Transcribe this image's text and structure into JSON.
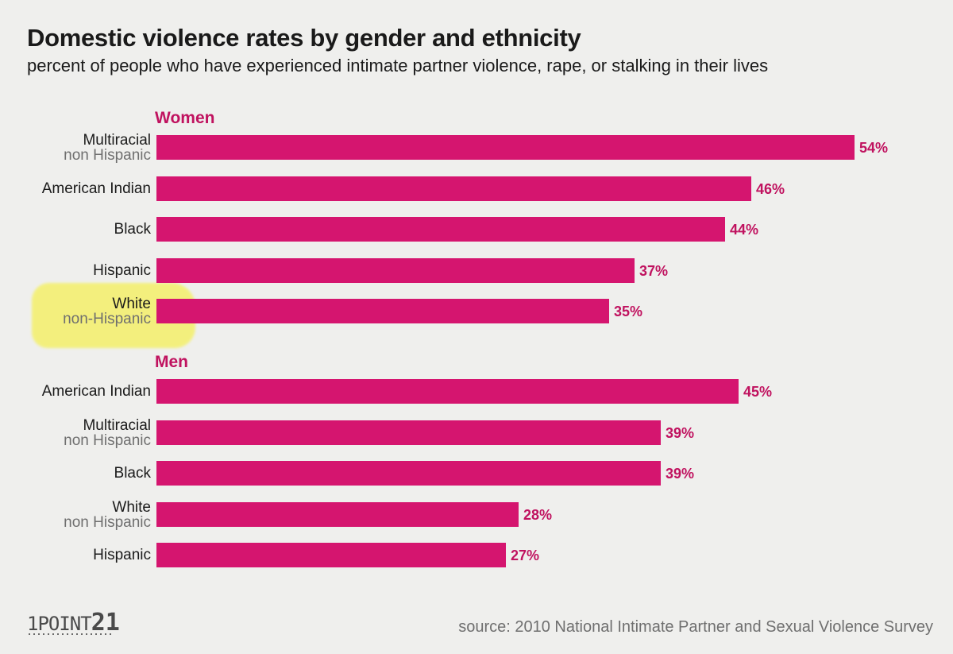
{
  "colors": {
    "bar": "#d5156f",
    "accent": "#c0125f",
    "highlight": "#f4f06a"
  },
  "header": {
    "title": "Domestic violence rates by gender and ethnicity",
    "subtitle": "percent of people who have experienced intimate partner violence, rape, or stalking in their lives"
  },
  "footer": {
    "logo_left": "1POINT",
    "logo_right": "21",
    "source": "source: 2010 National Intimate Partner and Sexual Violence Survey"
  },
  "chart_data": {
    "type": "bar",
    "orientation": "horizontal",
    "value_suffix": "%",
    "xlim": [
      0,
      54
    ],
    "grid": false,
    "highlighted_category": "White non-Hispanic (Women)",
    "groups": [
      {
        "name": "Women",
        "items": [
          {
            "line1": "Multiracial",
            "line2": "non Hispanic",
            "value": 54,
            "label": "54%"
          },
          {
            "line1": "American Indian",
            "line2": "",
            "value": 46,
            "label": "46%"
          },
          {
            "line1": "Black",
            "line2": "",
            "value": 44,
            "label": "44%"
          },
          {
            "line1": "Hispanic",
            "line2": "",
            "value": 37,
            "label": "37%"
          },
          {
            "line1": "White",
            "line2": "non-Hispanic",
            "value": 35,
            "label": "35%"
          }
        ]
      },
      {
        "name": "Men",
        "items": [
          {
            "line1": "American Indian",
            "line2": "",
            "value": 45,
            "label": "45%"
          },
          {
            "line1": "Multiracial",
            "line2": "non Hispanic",
            "value": 39,
            "label": "39%"
          },
          {
            "line1": "Black",
            "line2": "",
            "value": 39,
            "label": "39%"
          },
          {
            "line1": "White",
            "line2": "non Hispanic",
            "value": 28,
            "label": "28%"
          },
          {
            "line1": "Hispanic",
            "line2": "",
            "value": 27,
            "label": "27%"
          }
        ]
      }
    ]
  }
}
